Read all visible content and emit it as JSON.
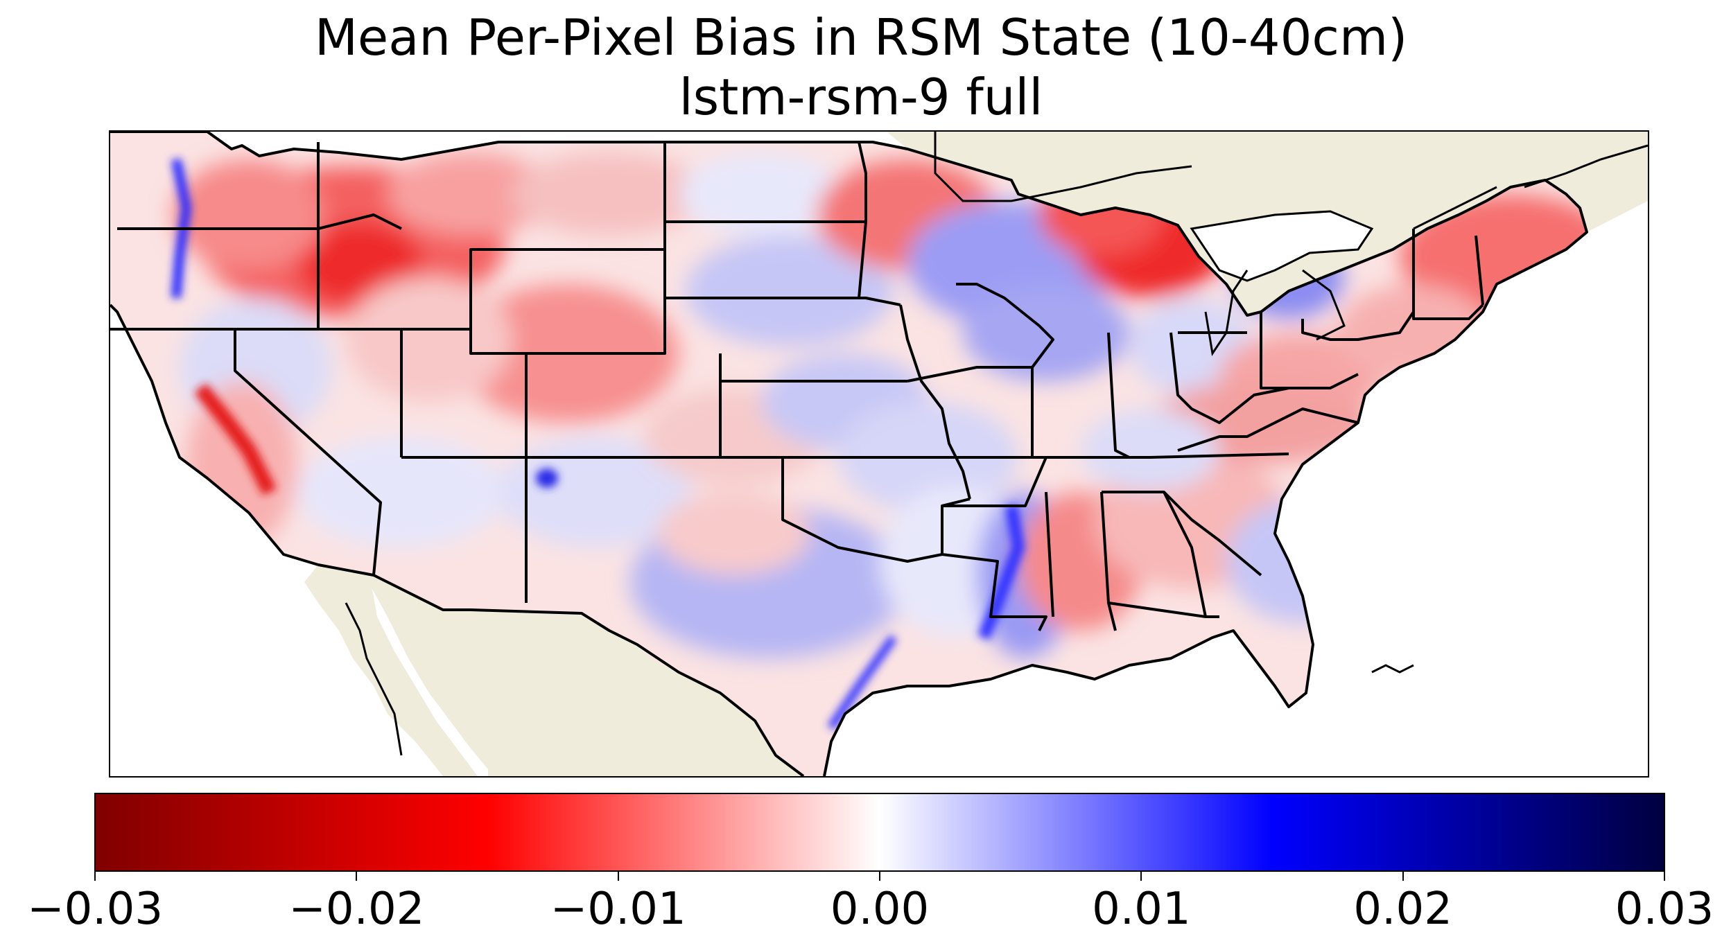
{
  "title": {
    "line1": "Mean Per-Pixel Bias in RSM State (10-40cm)",
    "line2": "lstm-rsm-9 full"
  },
  "map": {
    "region": "Contiguous United States",
    "ocean_color": "#ffffff",
    "land_color": "#efecdc",
    "border_color": "#000000",
    "bias_patterns": [
      {
        "area": "Montana / Idaho / Wyoming / Oregon interior",
        "sign": "negative",
        "color": "#f23b3b"
      },
      {
        "area": "Wisconsin / Upper Peninsula",
        "sign": "negative",
        "color": "#f02222"
      },
      {
        "area": "Central Valley California",
        "sign": "negative",
        "color": "#ee2a2a"
      },
      {
        "area": "Colorado / Utah",
        "sign": "negative",
        "color": "#f57070"
      },
      {
        "area": "Northeast (New York / New England)",
        "sign": "negative",
        "color": "#f75a5a"
      },
      {
        "area": "Iowa / Missouri / Kansas corridor",
        "sign": "positive",
        "color": "#8a8af5"
      },
      {
        "area": "Texas central",
        "sign": "positive",
        "color": "#8f8ff2"
      },
      {
        "area": "Mississippi River valley",
        "sign": "positive",
        "color": "#3a3aff"
      },
      {
        "area": "Cascade Range",
        "sign": "positive",
        "color": "#2a2aff"
      },
      {
        "area": "Lower Michigan",
        "sign": "positive",
        "color": "#7b7bf0"
      }
    ]
  },
  "colorbar": {
    "colormap": "seismic_r",
    "vmin": -0.03,
    "vmax": 0.03,
    "colors": [
      "#800000",
      "#ff0000",
      "#ffffff",
      "#0000ff",
      "#000040"
    ],
    "ticks": [
      {
        "value": -0.03,
        "label": "−0.03"
      },
      {
        "value": -0.02,
        "label": "−0.02"
      },
      {
        "value": -0.01,
        "label": "−0.01"
      },
      {
        "value": 0.0,
        "label": "0.00"
      },
      {
        "value": 0.01,
        "label": "0.01"
      },
      {
        "value": 0.02,
        "label": "0.02"
      },
      {
        "value": 0.03,
        "label": "0.03"
      }
    ]
  }
}
